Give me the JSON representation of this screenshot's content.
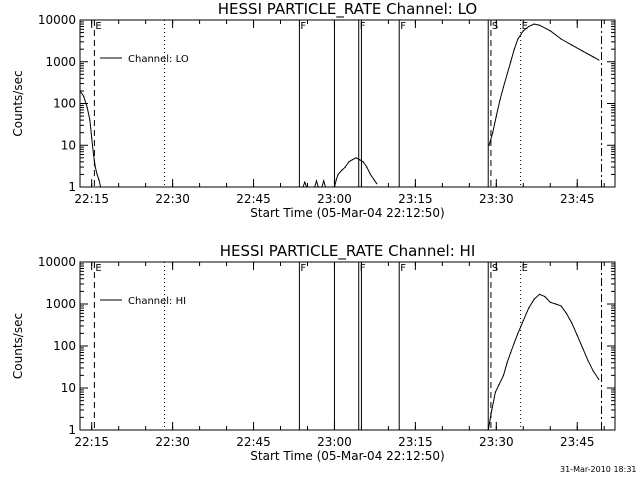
{
  "page": {
    "footer_stamp": "31-Mar-2010 18:31"
  },
  "chart_data": [
    {
      "type": "line",
      "title": "HESSI PARTICLE_RATE Channel: LO",
      "xlabel": "Start Time (05-Mar-04 22:12:50)",
      "ylabel": "Counts/sec",
      "yscale": "log",
      "ylim": [
        1,
        10000
      ],
      "yticks": [
        "1",
        "10",
        "100",
        "1000",
        "10000"
      ],
      "x_unit": "minutes of day",
      "xlim": [
        "22:12:50",
        "23:52:00"
      ],
      "xticks": [
        "22:15",
        "22:30",
        "22:45",
        "23:00",
        "23:15",
        "23:30",
        "23:45"
      ],
      "legend": {
        "position": "top-left",
        "entries": [
          "Channel: LO"
        ]
      },
      "grid": false,
      "series": [
        {
          "name": "Channel: LO",
          "points": [
            [
              "22:12:50",
              200
            ],
            [
              "22:13:30",
              150
            ],
            [
              "22:14:10",
              80
            ],
            [
              "22:14:40",
              40
            ],
            [
              "22:15:00",
              15
            ],
            [
              "22:15:20",
              6
            ],
            [
              "22:15:40",
              3
            ],
            [
              "22:16:00",
              2
            ],
            [
              "22:16:20",
              1.5
            ],
            [
              "22:16:40",
              1
            ],
            [
              "22:54:10",
              1
            ],
            [
              "22:54:30",
              1.3
            ],
            [
              "22:54:50",
              1
            ],
            [
              "22:56:20",
              1
            ],
            [
              "22:56:40",
              1.4
            ],
            [
              "22:57:00",
              1
            ],
            [
              "22:57:40",
              1
            ],
            [
              "22:58:00",
              1.4
            ],
            [
              "22:58:20",
              1
            ],
            [
              "23:00:00",
              1
            ],
            [
              "23:00:20",
              1.5
            ],
            [
              "23:00:40",
              2
            ],
            [
              "23:01:20",
              2.5
            ],
            [
              "23:02:00",
              3
            ],
            [
              "23:02:40",
              4
            ],
            [
              "23:03:20",
              4.5
            ],
            [
              "23:04:00",
              5
            ],
            [
              "23:04:40",
              4.5
            ],
            [
              "23:05:20",
              4
            ],
            [
              "23:06:00",
              3
            ],
            [
              "23:06:40",
              2
            ],
            [
              "23:07:20",
              1.5
            ],
            [
              "23:07:50",
              1.2
            ],
            [
              "23:28:40",
              10
            ],
            [
              "23:29:20",
              20
            ],
            [
              "23:30:00",
              50
            ],
            [
              "23:30:40",
              120
            ],
            [
              "23:31:20",
              250
            ],
            [
              "23:32:00",
              500
            ],
            [
              "23:32:40",
              1000
            ],
            [
              "23:33:20",
              2000
            ],
            [
              "23:34:00",
              3500
            ],
            [
              "23:35:00",
              5500
            ],
            [
              "23:36:00",
              7000
            ],
            [
              "23:37:00",
              8000
            ],
            [
              "23:38:00",
              7500
            ],
            [
              "23:40:00",
              5500
            ],
            [
              "23:42:00",
              3500
            ],
            [
              "23:44:00",
              2500
            ],
            [
              "23:46:00",
              1800
            ],
            [
              "23:48:00",
              1300
            ],
            [
              "23:49:00",
              1100
            ]
          ]
        }
      ],
      "markers": [
        {
          "label": "E",
          "time": "22:15:30",
          "style": "dashed"
        },
        {
          "time": "22:28:30",
          "style": "dotted"
        },
        {
          "label": "F",
          "time": "22:53:30",
          "style": "solid"
        },
        {
          "time": "23:00:00",
          "style": "solid"
        },
        {
          "label": "F",
          "time": "23:04:30",
          "style": "solid"
        },
        {
          "time": "23:05:00",
          "style": "solid"
        },
        {
          "label": "F",
          "time": "23:12:00",
          "style": "solid"
        },
        {
          "time": "23:28:30",
          "style": "solid"
        },
        {
          "label": "S",
          "time": "23:29:00",
          "style": "dashed"
        },
        {
          "label": "E",
          "time": "23:34:30",
          "style": "dotted"
        },
        {
          "time": "23:49:30",
          "style": "dash-dot"
        }
      ]
    },
    {
      "type": "line",
      "title": "HESSI PARTICLE_RATE Channel: HI",
      "xlabel": "Start Time (05-Mar-04 22:12:50)",
      "ylabel": "Counts/sec",
      "yscale": "log",
      "ylim": [
        1,
        10000
      ],
      "yticks": [
        "1",
        "10",
        "100",
        "1000",
        "10000"
      ],
      "x_unit": "minutes of day",
      "xlim": [
        "22:12:50",
        "23:52:00"
      ],
      "xticks": [
        "22:15",
        "22:30",
        "22:45",
        "23:00",
        "23:15",
        "23:30",
        "23:45"
      ],
      "legend": {
        "position": "top-left",
        "entries": [
          "Channel: HI"
        ]
      },
      "grid": false,
      "series": [
        {
          "name": "Channel: HI",
          "points": [
            [
              "23:28:30",
              1
            ],
            [
              "23:29:10",
              3
            ],
            [
              "23:29:50",
              8
            ],
            [
              "23:30:30",
              12
            ],
            [
              "23:31:20",
              20
            ],
            [
              "23:32:00",
              40
            ],
            [
              "23:32:40",
              70
            ],
            [
              "23:33:20",
              120
            ],
            [
              "23:34:00",
              200
            ],
            [
              "23:35:00",
              400
            ],
            [
              "23:36:00",
              800
            ],
            [
              "23:37:00",
              1300
            ],
            [
              "23:38:00",
              1700
            ],
            [
              "23:39:00",
              1500
            ],
            [
              "23:40:00",
              1100
            ],
            [
              "23:41:00",
              1000
            ],
            [
              "23:42:00",
              900
            ],
            [
              "23:43:00",
              600
            ],
            [
              "23:44:00",
              350
            ],
            [
              "23:45:00",
              180
            ],
            [
              "23:46:00",
              90
            ],
            [
              "23:47:00",
              45
            ],
            [
              "23:48:00",
              25
            ],
            [
              "23:49:00",
              16
            ]
          ]
        }
      ],
      "markers": [
        {
          "label": "E",
          "time": "22:15:30",
          "style": "dashed"
        },
        {
          "time": "22:28:30",
          "style": "dotted"
        },
        {
          "label": "F",
          "time": "22:53:30",
          "style": "solid"
        },
        {
          "time": "23:00:00",
          "style": "solid"
        },
        {
          "label": "F",
          "time": "23:04:30",
          "style": "solid"
        },
        {
          "time": "23:05:00",
          "style": "solid"
        },
        {
          "label": "F",
          "time": "23:12:00",
          "style": "solid"
        },
        {
          "time": "23:28:30",
          "style": "solid"
        },
        {
          "label": "S",
          "time": "23:29:00",
          "style": "dashed"
        },
        {
          "label": "E",
          "time": "23:34:30",
          "style": "dotted"
        },
        {
          "time": "23:49:30",
          "style": "dash-dot"
        }
      ]
    }
  ]
}
